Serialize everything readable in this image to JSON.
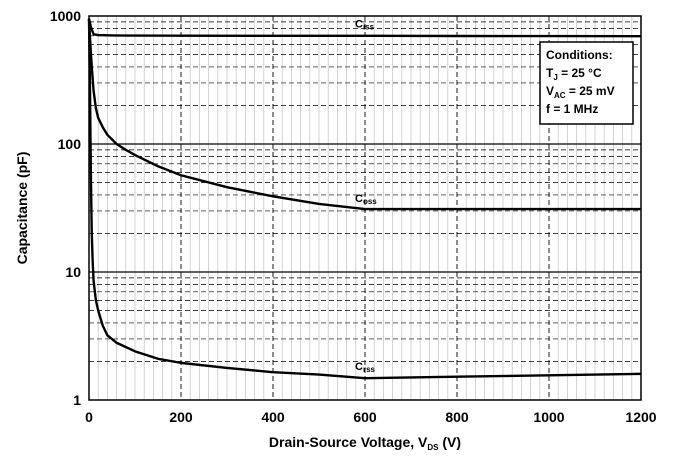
{
  "chart_data": {
    "type": "line",
    "title": "",
    "xlabel": {
      "main": "Drain-Source Voltage, V",
      "sub": "DS",
      "suffix": " (V)"
    },
    "ylabel": "Capacitance (pF)",
    "xlim": [
      0,
      1200
    ],
    "ylim": [
      1,
      1000
    ],
    "y_scale": "log",
    "grid": true,
    "x_ticks": [
      0,
      200,
      400,
      600,
      800,
      1000,
      1200
    ],
    "x_tick_labels": [
      "0",
      "200",
      "400",
      "600",
      "800",
      "1000",
      "1200"
    ],
    "y_ticks": [
      1,
      10,
      100,
      1000
    ],
    "y_tick_labels": [
      "1",
      "10",
      "100",
      "1000"
    ],
    "series": [
      {
        "name": "Ciss",
        "label_main": "C",
        "label_sub": "iss",
        "label_x": 600,
        "label_y": 870,
        "points": [
          [
            0,
            950
          ],
          [
            5,
            800
          ],
          [
            10,
            720
          ],
          [
            20,
            710
          ],
          [
            50,
            705
          ],
          [
            100,
            703
          ],
          [
            200,
            702
          ],
          [
            400,
            700
          ],
          [
            600,
            700
          ],
          [
            800,
            698
          ],
          [
            1000,
            697
          ],
          [
            1200,
            695
          ]
        ]
      },
      {
        "name": "Coss",
        "label_main": "C",
        "label_sub": "oss",
        "label_x": 600,
        "label_y": 38,
        "points": [
          [
            0,
            950
          ],
          [
            3,
            600
          ],
          [
            6,
            400
          ],
          [
            10,
            260
          ],
          [
            15,
            190
          ],
          [
            20,
            160
          ],
          [
            30,
            135
          ],
          [
            40,
            118
          ],
          [
            60,
            100
          ],
          [
            80,
            90
          ],
          [
            100,
            82
          ],
          [
            150,
            67
          ],
          [
            200,
            57
          ],
          [
            300,
            46
          ],
          [
            400,
            39
          ],
          [
            500,
            34
          ],
          [
            600,
            31
          ],
          [
            800,
            31
          ],
          [
            1000,
            31
          ],
          [
            1200,
            31
          ]
        ]
      },
      {
        "name": "Crss",
        "label_main": "C",
        "label_sub": "rss",
        "label_x": 600,
        "label_y": 1.85,
        "points": [
          [
            0,
            950
          ],
          [
            2,
            300
          ],
          [
            4,
            60
          ],
          [
            6,
            20
          ],
          [
            8,
            12
          ],
          [
            10,
            8.5
          ],
          [
            15,
            6
          ],
          [
            20,
            5
          ],
          [
            30,
            3.8
          ],
          [
            40,
            3.2
          ],
          [
            60,
            2.8
          ],
          [
            100,
            2.4
          ],
          [
            150,
            2.1
          ],
          [
            200,
            1.95
          ],
          [
            300,
            1.78
          ],
          [
            400,
            1.65
          ],
          [
            500,
            1.58
          ],
          [
            600,
            1.48
          ],
          [
            700,
            1.5
          ],
          [
            800,
            1.52
          ],
          [
            1000,
            1.56
          ],
          [
            1200,
            1.6
          ]
        ]
      }
    ],
    "conditions": [
      {
        "main": "Conditions:",
        "sub": "",
        "suffix": ""
      },
      {
        "main": "T",
        "sub": "J",
        "suffix": " = 25 °C"
      },
      {
        "main": "V",
        "sub": "AC",
        "suffix": " = 25 mV"
      },
      {
        "main": "f = 1 MHz",
        "sub": "",
        "suffix": ""
      }
    ],
    "conditions_position": "top-right"
  }
}
